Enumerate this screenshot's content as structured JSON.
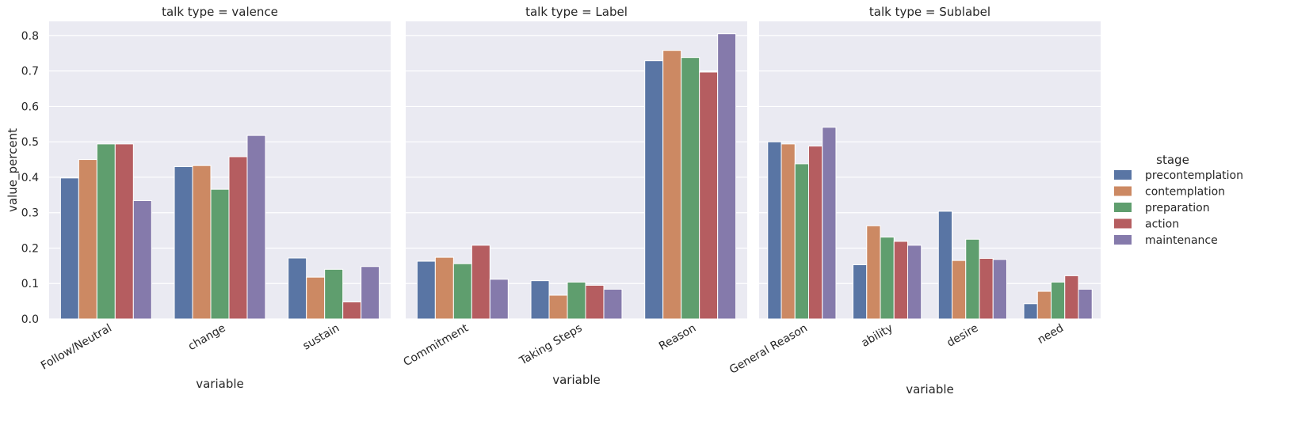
{
  "chart_data": {
    "type": "bar",
    "ylabel": "value_percent",
    "ylim": [
      0,
      0.84
    ],
    "yticks": [
      "0.0",
      "0.1",
      "0.2",
      "0.3",
      "0.4",
      "0.5",
      "0.6",
      "0.7",
      "0.8"
    ],
    "grid": true,
    "legend": {
      "title": "stage",
      "placement": "right",
      "entries": [
        "precontemplation",
        "contemplation",
        "preparation",
        "action",
        "maintenance"
      ]
    },
    "colors": {
      "precontemplation": "#5975a4",
      "contemplation": "#cc8963",
      "preparation": "#5f9e6e",
      "action": "#b55d60",
      "maintenance": "#857aab",
      "background": "#eaeaf2",
      "grid": "#ffffff"
    },
    "panels": [
      {
        "title": "talk type = valence",
        "xlabel": "variable",
        "categories": [
          "Follow/Neutral",
          "change",
          "sustain"
        ],
        "series": [
          {
            "name": "precontemplation",
            "values": [
              0.398,
              0.43,
              0.172
            ]
          },
          {
            "name": "contemplation",
            "values": [
              0.45,
              0.433,
              0.118
            ]
          },
          {
            "name": "preparation",
            "values": [
              0.494,
              0.366,
              0.14
            ]
          },
          {
            "name": "action",
            "values": [
              0.494,
              0.458,
              0.048
            ]
          },
          {
            "name": "maintenance",
            "values": [
              0.334,
              0.518,
              0.148
            ]
          }
        ]
      },
      {
        "title": "talk type = Label",
        "xlabel": "variable",
        "categories": [
          "Commitment",
          "Taking Steps",
          "Reason"
        ],
        "series": [
          {
            "name": "precontemplation",
            "values": [
              0.163,
              0.108,
              0.729
            ]
          },
          {
            "name": "contemplation",
            "values": [
              0.174,
              0.067,
              0.758
            ]
          },
          {
            "name": "preparation",
            "values": [
              0.156,
              0.104,
              0.738
            ]
          },
          {
            "name": "action",
            "values": [
              0.208,
              0.095,
              0.697
            ]
          },
          {
            "name": "maintenance",
            "values": [
              0.112,
              0.084,
              0.805
            ]
          }
        ]
      },
      {
        "title": "talk type = Sublabel",
        "xlabel": "variable",
        "categories": [
          "General Reason",
          "ability",
          "desire",
          "need"
        ],
        "series": [
          {
            "name": "precontemplation",
            "values": [
              0.5,
              0.153,
              0.304,
              0.043
            ]
          },
          {
            "name": "contemplation",
            "values": [
              0.494,
              0.263,
              0.165,
              0.078
            ]
          },
          {
            "name": "preparation",
            "values": [
              0.438,
              0.231,
              0.225,
              0.104
            ]
          },
          {
            "name": "action",
            "values": [
              0.488,
              0.219,
              0.171,
              0.122
            ]
          },
          {
            "name": "maintenance",
            "values": [
              0.541,
              0.208,
              0.168,
              0.084
            ]
          }
        ]
      }
    ]
  }
}
